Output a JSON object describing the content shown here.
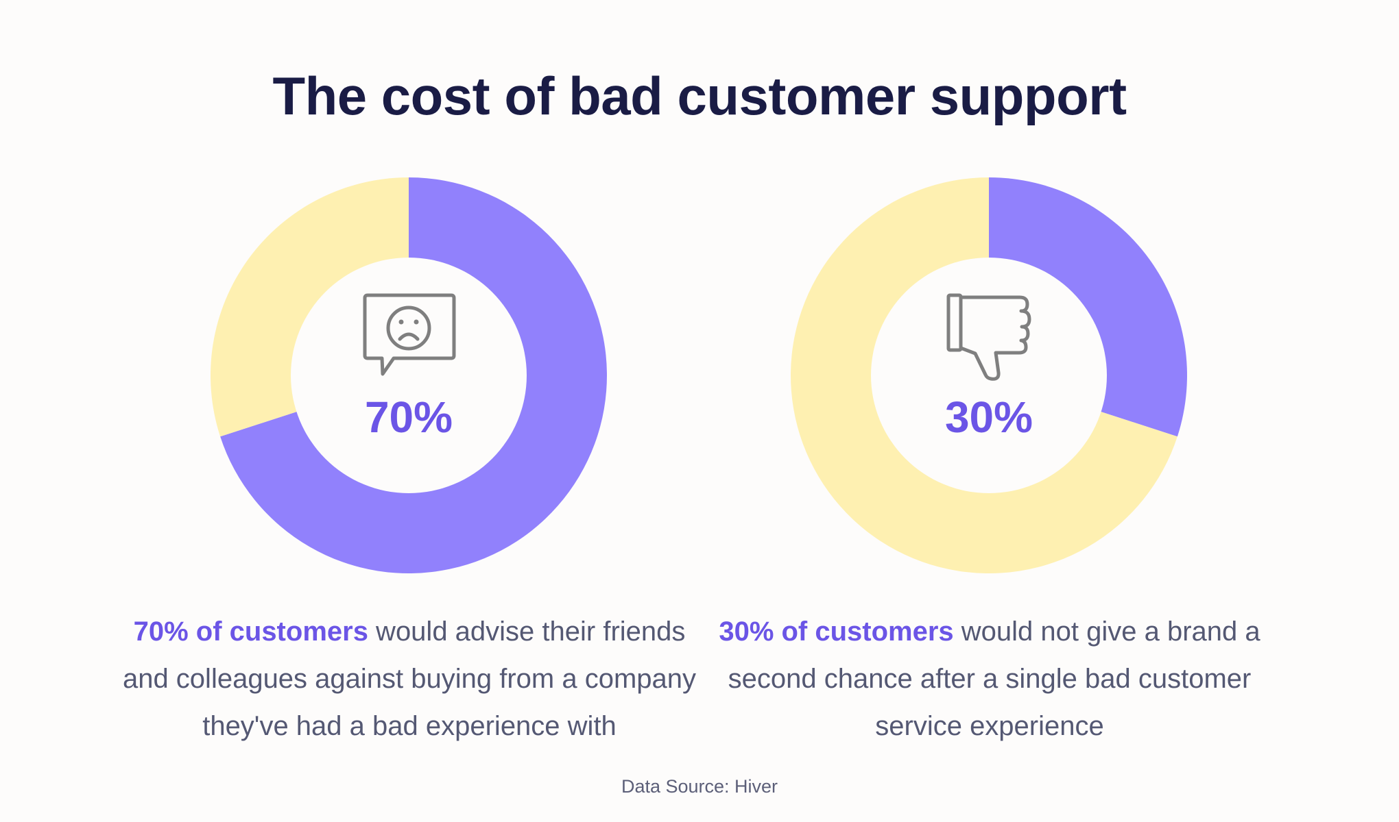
{
  "title": "The cost of bad customer support",
  "colors": {
    "primary": "#9181fc",
    "secondary": "#fef0b1",
    "highlight_text": "#6b55e6",
    "title": "#1a1c45",
    "body_text": "#545873",
    "icon": "#7f7f7f",
    "background": "#fdfcfb"
  },
  "chart_data": [
    {
      "type": "pie",
      "donut": true,
      "values": [
        70,
        30
      ],
      "value_label": "70%",
      "icon": "sad-face-speech-bubble-icon",
      "caption_highlight": "70% of customers",
      "caption_rest": " would advise their friends and colleagues against buying from a company they've had a bad experience with"
    },
    {
      "type": "pie",
      "donut": true,
      "values": [
        30,
        70
      ],
      "value_label": "30%",
      "icon": "thumbs-down-icon",
      "caption_highlight": "30% of customers",
      "caption_rest": " would not give a brand a second chance after a single bad customer service experience"
    }
  ],
  "source": "Data Source: Hiver"
}
